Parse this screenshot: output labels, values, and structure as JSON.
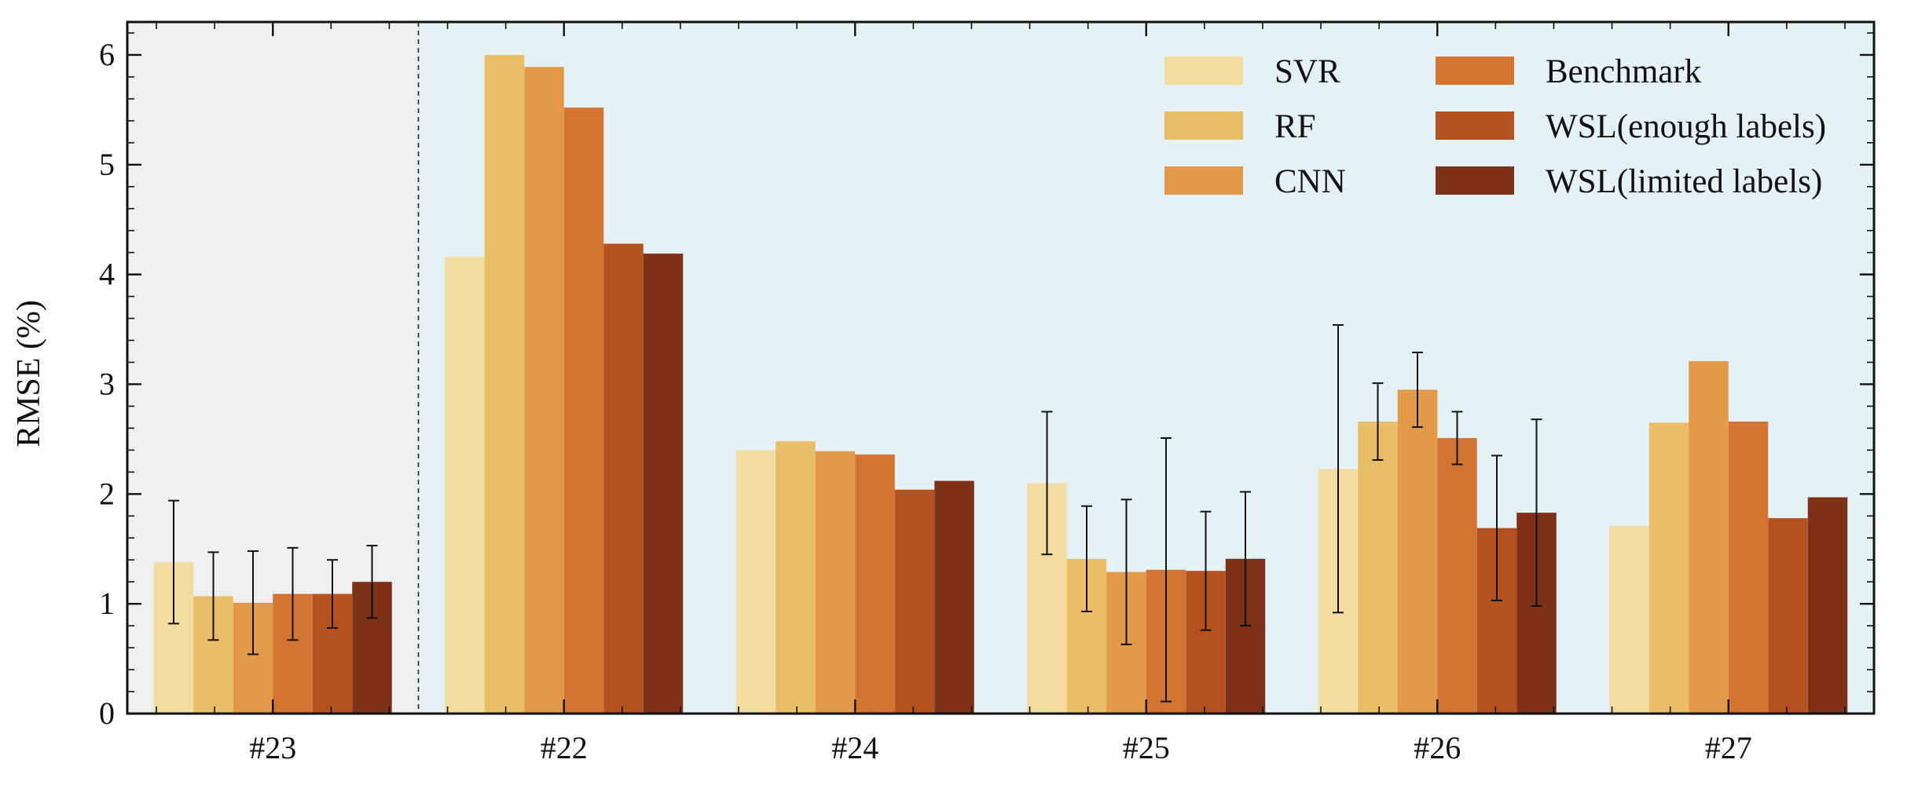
{
  "chart_data": {
    "type": "bar",
    "title": "",
    "xlabel": "",
    "ylabel": "RMSE (%)",
    "ylim": [
      0,
      6.3
    ],
    "yticks": [
      0,
      1,
      2,
      3,
      4,
      5,
      6
    ],
    "grid": false,
    "legend_position": "top-right",
    "legend_columns": 2,
    "categories": [
      "#23",
      "#22",
      "#24",
      "#25",
      "#26",
      "#27"
    ],
    "background_regions": [
      {
        "from_category": "#23",
        "to_category": "#23",
        "color": "#f0f0f0"
      },
      {
        "from_category": "#22",
        "to_category": "#27",
        "color": "#e5f2f5"
      }
    ],
    "series": [
      {
        "name": "SVR",
        "color": "#f2dca0",
        "values": [
          1.38,
          4.16,
          2.4,
          2.1,
          2.23,
          1.71
        ],
        "errors": [
          0.56,
          null,
          null,
          0.65,
          1.31,
          null
        ]
      },
      {
        "name": "RF",
        "color": "#e9be67",
        "values": [
          1.07,
          6.0,
          2.48,
          1.41,
          2.66,
          2.65
        ],
        "errors": [
          0.4,
          null,
          null,
          0.48,
          0.35,
          null
        ]
      },
      {
        "name": "CNN",
        "color": "#e39a48",
        "values": [
          1.01,
          5.89,
          2.39,
          1.29,
          2.95,
          3.21
        ],
        "errors": [
          0.47,
          null,
          null,
          0.66,
          0.34,
          null
        ]
      },
      {
        "name": "Benchmark",
        "color": "#d37532",
        "values": [
          1.09,
          5.52,
          2.36,
          1.31,
          2.51,
          2.66
        ],
        "errors": [
          0.42,
          null,
          null,
          1.2,
          0.24,
          null
        ]
      },
      {
        "name": "WSL(enough labels)",
        "color": "#b4521f",
        "values": [
          1.09,
          4.28,
          2.04,
          1.3,
          1.69,
          1.78
        ],
        "errors": [
          0.31,
          null,
          null,
          0.54,
          0.66,
          null
        ]
      },
      {
        "name": "WSL(limited labels)",
        "color": "#7d3218",
        "values": [
          1.2,
          4.19,
          2.12,
          1.41,
          1.83,
          1.97
        ],
        "errors": [
          0.33,
          null,
          null,
          0.61,
          0.85,
          null
        ]
      }
    ]
  }
}
